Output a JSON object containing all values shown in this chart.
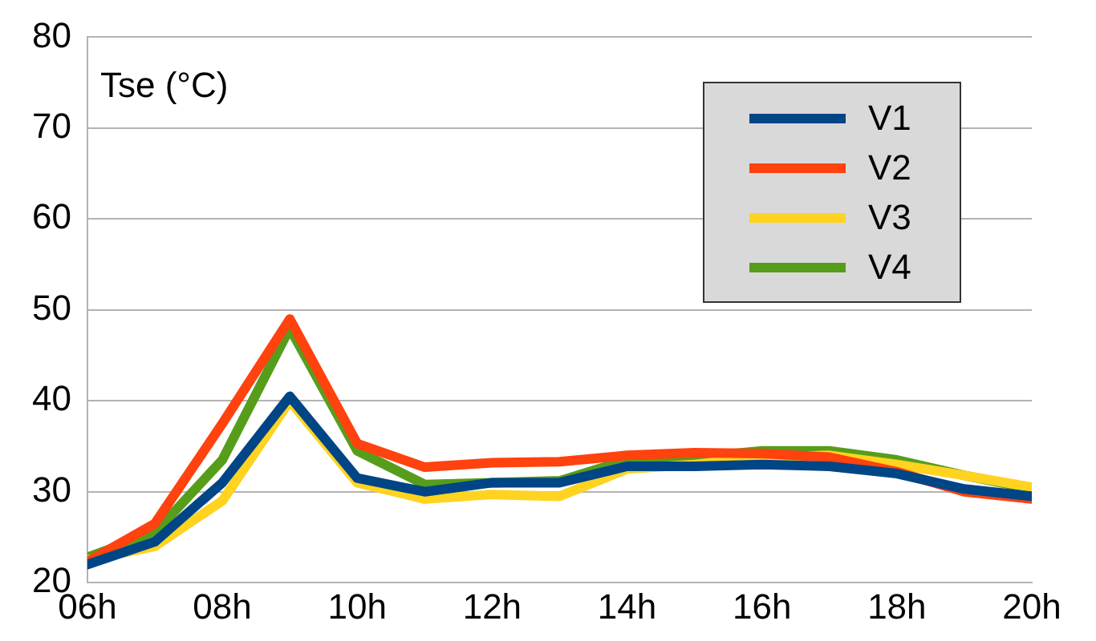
{
  "chart_data": {
    "type": "line",
    "title": "Tse (°C)",
    "x": [
      6,
      7,
      8,
      9,
      10,
      11,
      12,
      13,
      14,
      15,
      16,
      17,
      18,
      19,
      20
    ],
    "series": [
      {
        "name": "V1",
        "color": "#004586",
        "values": [
          22,
          24.5,
          31,
          40.5,
          31.5,
          30,
          31,
          31,
          32.8,
          32.8,
          33,
          32.8,
          32,
          30.3,
          29.5
        ]
      },
      {
        "name": "V2",
        "color": "#ff420e",
        "values": [
          22.3,
          26.5,
          37.5,
          49,
          35.3,
          32.7,
          33.2,
          33.3,
          34,
          34.3,
          34.2,
          33.8,
          32.2,
          30,
          29.2
        ]
      },
      {
        "name": "V3",
        "color": "#ffd320",
        "values": [
          22.5,
          24,
          29,
          40,
          31,
          29.2,
          29.7,
          29.5,
          32.5,
          33,
          33.8,
          34,
          33,
          31.8,
          30.5
        ]
      },
      {
        "name": "V4",
        "color": "#579d1c",
        "values": [
          22.8,
          25.5,
          33.5,
          48,
          34.5,
          30.8,
          31,
          31.2,
          33.5,
          33.8,
          34.5,
          34.5,
          33.5,
          31.8,
          30.3
        ]
      }
    ],
    "xlim": [
      6,
      20
    ],
    "xticks": [
      {
        "value": 6,
        "label": "06h"
      },
      {
        "value": 8,
        "label": "08h"
      },
      {
        "value": 10,
        "label": "10h"
      },
      {
        "value": 12,
        "label": "12h"
      },
      {
        "value": 14,
        "label": "14h"
      },
      {
        "value": 16,
        "label": "16h"
      },
      {
        "value": 18,
        "label": "18h"
      },
      {
        "value": 20,
        "label": "20h"
      }
    ],
    "ylim": [
      20,
      80
    ],
    "yticks": [
      20,
      30,
      40,
      50,
      60,
      70,
      80
    ],
    "grid": "y",
    "legend": "top right",
    "marker": "none",
    "line_style": "solid"
  }
}
